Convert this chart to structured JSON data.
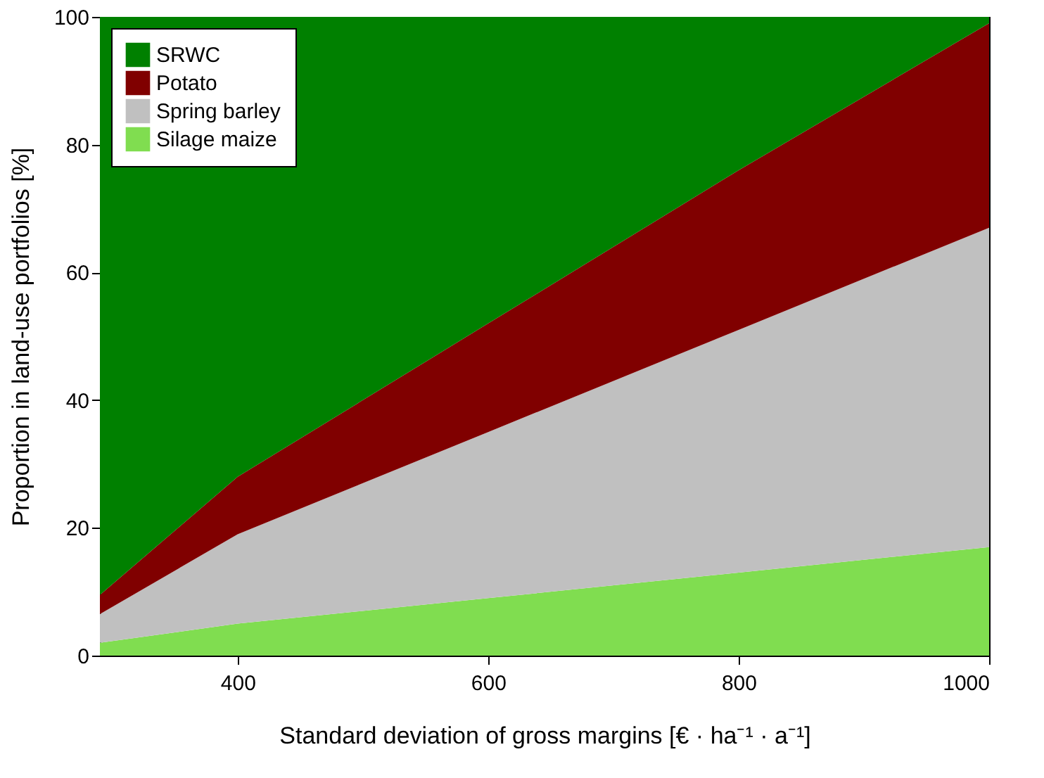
{
  "chart_data": {
    "type": "area",
    "stacked": true,
    "xlabel": "Standard deviation of gross margins [€ · ha⁻¹ · a⁻¹]",
    "ylabel": "Proportion in land-use portfolios [%]",
    "x": [
      290,
      400,
      600,
      800,
      1000
    ],
    "series": [
      {
        "name": "Silage maize",
        "color": "#80dd50",
        "values": [
          2,
          5,
          9,
          13,
          17
        ]
      },
      {
        "name": "Spring barley",
        "color": "#c0c0c0",
        "values": [
          4.5,
          14,
          26,
          38,
          50
        ]
      },
      {
        "name": "Potato",
        "color": "#800000",
        "values": [
          3,
          9,
          17,
          25,
          32
        ]
      },
      {
        "name": "SRWC",
        "color": "#008000",
        "values": [
          90.5,
          72,
          48,
          24,
          1
        ]
      }
    ],
    "xlim": [
      290,
      1000
    ],
    "xticks": [
      400,
      600,
      800,
      1000
    ],
    "ylim": [
      0,
      100
    ],
    "yticks": [
      0,
      20,
      40,
      60,
      80,
      100
    ],
    "grid": false,
    "legend": "top left"
  }
}
